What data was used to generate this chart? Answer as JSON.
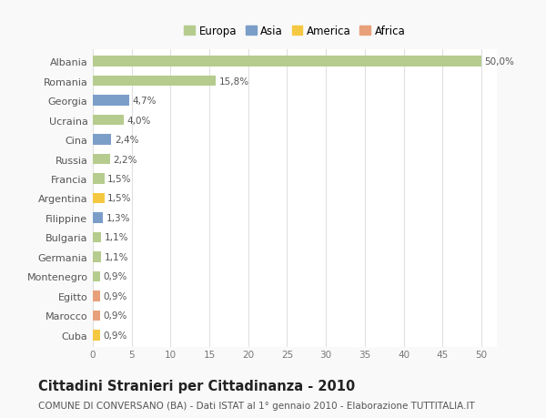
{
  "countries": [
    "Albania",
    "Romania",
    "Georgia",
    "Ucraina",
    "Cina",
    "Russia",
    "Francia",
    "Argentina",
    "Filippine",
    "Bulgaria",
    "Germania",
    "Montenegro",
    "Egitto",
    "Marocco",
    "Cuba"
  ],
  "values": [
    50.0,
    15.8,
    4.7,
    4.0,
    2.4,
    2.2,
    1.5,
    1.5,
    1.3,
    1.1,
    1.1,
    0.9,
    0.9,
    0.9,
    0.9
  ],
  "labels": [
    "50,0%",
    "15,8%",
    "4,7%",
    "4,0%",
    "2,4%",
    "2,2%",
    "1,5%",
    "1,5%",
    "1,3%",
    "1,1%",
    "1,1%",
    "0,9%",
    "0,9%",
    "0,9%",
    "0,9%"
  ],
  "colors": [
    "#b5cc8e",
    "#b5cc8e",
    "#7b9ec9",
    "#b5cc8e",
    "#7b9ec9",
    "#b5cc8e",
    "#b5cc8e",
    "#f5c842",
    "#7b9ec9",
    "#b5cc8e",
    "#b5cc8e",
    "#b5cc8e",
    "#e8a07a",
    "#e8a07a",
    "#f5c842"
  ],
  "legend_labels": [
    "Europa",
    "Asia",
    "America",
    "Africa"
  ],
  "legend_colors": [
    "#b5cc8e",
    "#7b9ec9",
    "#f5c842",
    "#e8a07a"
  ],
  "xlim": [
    0,
    52
  ],
  "xticks": [
    0,
    5,
    10,
    15,
    20,
    25,
    30,
    35,
    40,
    45,
    50
  ],
  "title": "Cittadini Stranieri per Cittadinanza - 2010",
  "subtitle": "COMUNE DI CONVERSANO (BA) - Dati ISTAT al 1° gennaio 2010 - Elaborazione TUTTITALIA.IT",
  "bg_color": "#f9f9f9",
  "plot_bg_color": "#ffffff",
  "bar_height": 0.55,
  "label_fontsize": 7.5,
  "ytick_fontsize": 8.0,
  "xtick_fontsize": 7.5,
  "title_fontsize": 10.5,
  "subtitle_fontsize": 7.5,
  "legend_fontsize": 8.5
}
